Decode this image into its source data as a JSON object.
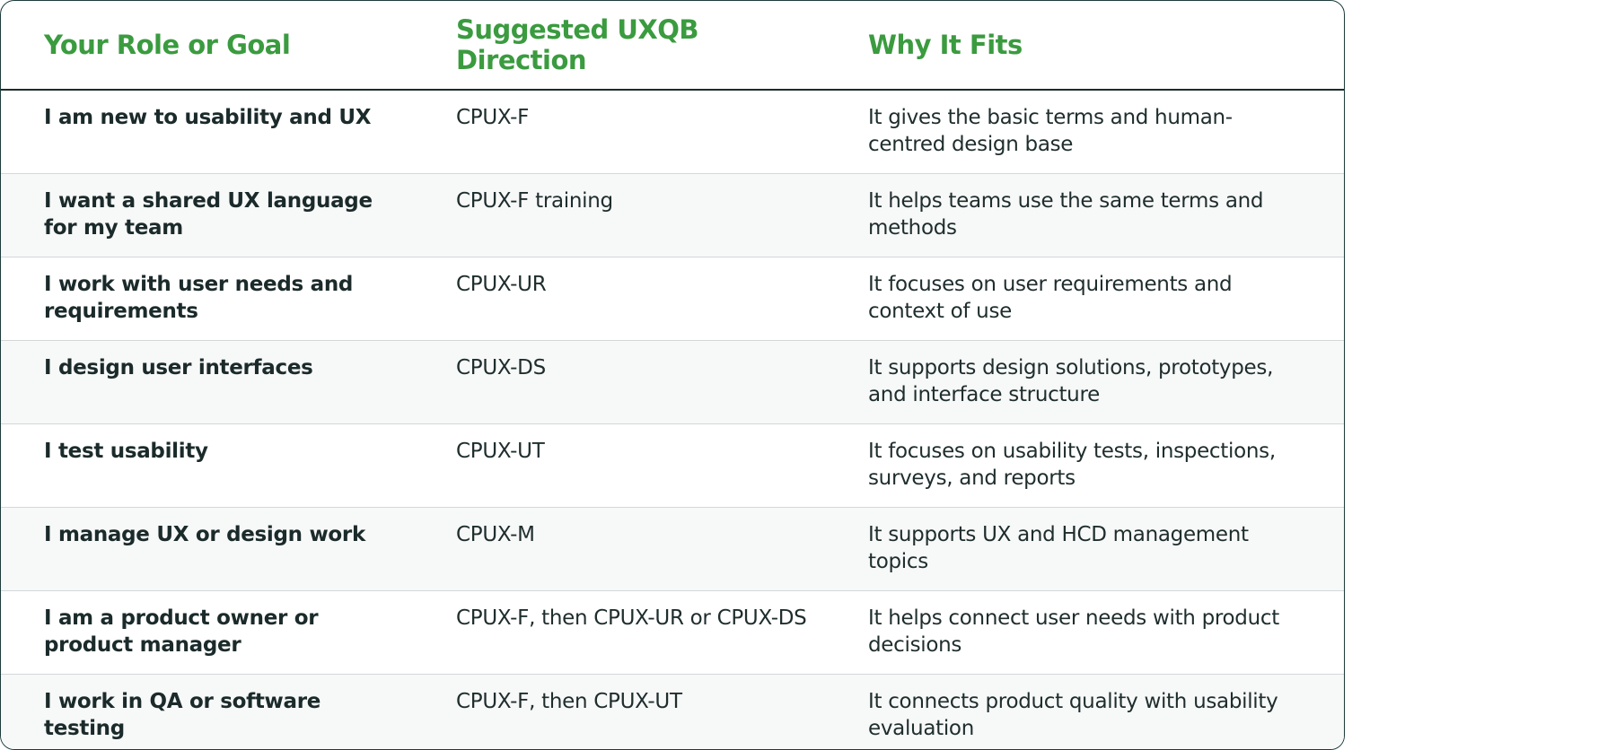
{
  "table": {
    "header": [
      "Your Role or Goal",
      "Suggested UXQB Direction",
      "Why It Fits"
    ],
    "rows": [
      [
        "I am new to usability and UX",
        "CPUX-F",
        "It gives the basic terms and human-centred design base"
      ],
      [
        "I want a shared UX language for my team",
        "CPUX-F training",
        "It helps teams use the same terms and methods"
      ],
      [
        "I work with user needs and requirements",
        "CPUX-UR",
        "It focuses on user requirements and context of use"
      ],
      [
        "I design user interfaces",
        "CPUX-DS",
        "It supports design solutions, prototypes, and interface structure"
      ],
      [
        "I test usability",
        "CPUX-UT",
        "It focuses on usability tests, inspections, surveys, and reports"
      ],
      [
        "I manage UX or design work",
        "CPUX-M",
        "It supports UX and HCD management topics"
      ],
      [
        "I am a product owner or product manager",
        "CPUX-F, then CPUX-UR or CPUX-DS",
        "It helps connect user needs with product decisions"
      ],
      [
        "I work in QA or software testing",
        "CPUX-F, then CPUX-UT",
        "It connects product quality with usability evaluation"
      ]
    ]
  }
}
